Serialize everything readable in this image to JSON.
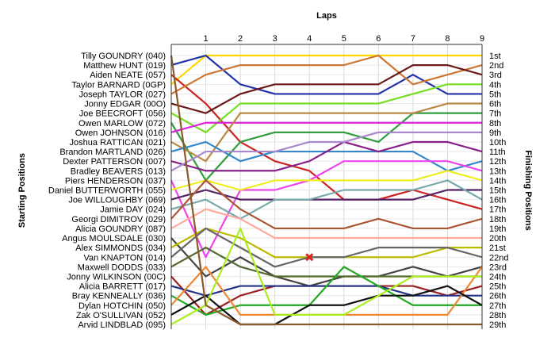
{
  "chart_data": {
    "type": "line",
    "title": "",
    "xlabel": "Laps",
    "left_axis_label": "Starting Positions",
    "right_axis_label": "Finishing Positions",
    "laps": [
      1,
      2,
      3,
      4,
      5,
      6,
      7,
      8,
      9
    ],
    "x_range": [
      0,
      9
    ],
    "y_range": [
      1,
      29
    ],
    "y_inverted": true,
    "grid": true,
    "drivers": [
      "Tilly GOUNDRY (040)",
      "Matthew HUNT (019)",
      "Aiden NEATE (057)",
      "Taylor BARNARD (0GP)",
      "Joseph TAYLOR (027)",
      "Jonny EDGAR (00O)",
      "Joe BEECROFT (056)",
      "Owen MARLOW (072)",
      "Owen JOHNSON (016)",
      "Joshua RATTICAN (021)",
      "Brandon MARTLAND (026)",
      "Dexter PATTERSON (007)",
      "Bradley BEAVERS (013)",
      "Piers HENDERSON (037)",
      "Daniel BUTTERWORTH (055)",
      "Joe WILLOUGHBY (069)",
      "Jamie DAY (024)",
      "Georgi DIMITROV (029)",
      "Alicia GOUNDRY (087)",
      "Angus MOULSDALE (030)",
      "Alex SIMMONDS (034)",
      "Van KNAPTON (014)",
      "Maxwell DODDS (033)",
      "Jonny WILKINSON (00C)",
      "Alicia BARRETT (017)",
      "Bray KENNEALLY (036)",
      "Dylan HOTCHIN (050)",
      "Zak O'SULLIVAN (052)",
      "Arvid LINDBLAD (095)"
    ],
    "finishing_positions": [
      "1st",
      "2nd",
      "3rd",
      "4th",
      "5th",
      "6th",
      "7th",
      "8th",
      "9th",
      "10th",
      "11th",
      "12th",
      "13th",
      "14th",
      "15th",
      "16th",
      "17th",
      "18th",
      "19th",
      "20th",
      "21st",
      "22nd",
      "23rd",
      "24th",
      "25th",
      "26th",
      "27th",
      "28th",
      "29th"
    ],
    "series": [
      {
        "color": "#FFD700",
        "values": [
          4,
          1,
          1,
          1,
          1,
          1,
          1,
          1,
          1,
          1
        ]
      },
      {
        "color": "#2233AA",
        "values": [
          2,
          1,
          4,
          5,
          5,
          5,
          5,
          3,
          5,
          5
        ]
      },
      {
        "color": "#CC2222",
        "values": [
          3,
          6,
          10,
          12,
          13,
          16,
          16,
          15,
          16,
          17
        ]
      },
      {
        "color": "#CC7733",
        "values": [
          5,
          3,
          2,
          2,
          2,
          2,
          1,
          4,
          3,
          2
        ]
      },
      {
        "color": "#6B1A1A",
        "values": [
          6,
          7,
          5,
          4,
          4,
          4,
          4,
          2,
          2,
          3
        ]
      },
      {
        "color": "#77DD22",
        "values": [
          7,
          9,
          6,
          6,
          6,
          6,
          6,
          5,
          4,
          4
        ]
      },
      {
        "color": "#2E9E3E",
        "values": [
          8,
          14,
          10,
          9,
          9,
          9,
          10,
          7,
          7,
          7
        ]
      },
      {
        "color": "#DD22DD",
        "values": [
          9,
          8,
          8,
          8,
          8,
          8,
          8,
          8,
          8,
          8
        ]
      },
      {
        "color": "#BB8844",
        "values": [
          10,
          12,
          7,
          7,
          7,
          7,
          7,
          7,
          6,
          6
        ]
      },
      {
        "color": "#3388CC",
        "values": [
          11,
          10,
          12,
          11,
          11,
          11,
          11,
          11,
          13,
          12
        ]
      },
      {
        "color": "#882288",
        "values": [
          12,
          13,
          13,
          13,
          12,
          10,
          11,
          10,
          10,
          11
        ]
      },
      {
        "color": "#AA88CC",
        "values": [
          13,
          11,
          11,
          11,
          10,
          10,
          9,
          9,
          9,
          9
        ]
      },
      {
        "color": "#EE44EE",
        "values": [
          14,
          22,
          15,
          15,
          14,
          12,
          12,
          12,
          12,
          13
        ]
      },
      {
        "color": "#EEEE22",
        "values": [
          15,
          14,
          15,
          14,
          14,
          14,
          14,
          14,
          13,
          14
        ]
      },
      {
        "color": "#552266",
        "values": [
          16,
          15,
          16,
          16,
          16,
          16,
          16,
          16,
          15,
          15
        ]
      },
      {
        "color": "#77AAAA",
        "values": [
          17,
          16,
          18,
          16,
          16,
          15,
          15,
          15,
          14,
          16
        ]
      },
      {
        "color": "#AA5533",
        "values": [
          18,
          14,
          17,
          19,
          19,
          19,
          18,
          19,
          19,
          18
        ]
      },
      {
        "color": "#FFAA99",
        "values": [
          19,
          17,
          18,
          20,
          20,
          20,
          20,
          20,
          20,
          20
        ]
      },
      {
        "color": "#444444",
        "values": [
          20,
          24,
          22,
          24,
          25,
          24,
          24,
          23,
          24,
          23
        ]
      },
      {
        "color": "#BBBB00",
        "values": [
          21,
          19,
          20,
          22,
          22,
          22,
          22,
          22,
          21,
          21
        ]
      },
      {
        "color": "#666666",
        "values": [
          22,
          19,
          21,
          23,
          22,
          22,
          21,
          21,
          21,
          22
        ]
      },
      {
        "color": "#556B2F",
        "values": [
          23,
          21,
          23,
          24,
          24,
          24,
          24,
          24,
          24,
          24
        ]
      },
      {
        "color": "#992222",
        "values": [
          24,
          28,
          26,
          25,
          25,
          25,
          25,
          25,
          26,
          25
        ]
      },
      {
        "color": "#223388",
        "values": [
          25,
          26,
          25,
          25,
          25,
          25,
          25,
          26,
          26,
          26
        ]
      },
      {
        "color": "#22AA22",
        "values": [
          26,
          28,
          27,
          27,
          27,
          23,
          25,
          27,
          27,
          27
        ]
      },
      {
        "color": "#EE8833",
        "values": [
          27,
          23,
          28,
          28,
          28,
          28,
          28,
          28,
          28,
          23
        ]
      },
      {
        "color": "#111111",
        "values": [
          28,
          26,
          29,
          29,
          27,
          27,
          26,
          26,
          25,
          27
        ]
      },
      {
        "color": "#AAEE22",
        "values": [
          29,
          27,
          19,
          28,
          28,
          28,
          26,
          24,
          24,
          24
        ]
      },
      {
        "color": "#8B5A2B",
        "values": [
          1,
          27,
          29,
          29,
          29,
          29,
          29,
          29,
          29,
          29
        ]
      }
    ],
    "marker": {
      "lap": 4,
      "position": 22,
      "shape": "x",
      "color": "#DD2222"
    }
  }
}
